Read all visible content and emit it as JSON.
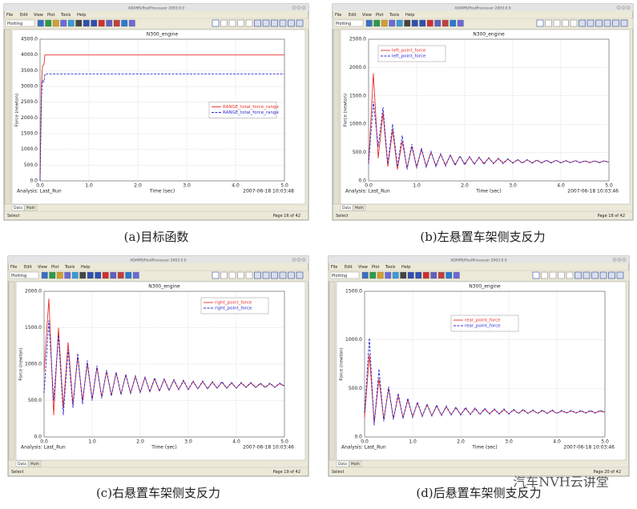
{
  "window": {
    "title": "ADAMS/PostProcessor 2003.0.0",
    "menu": [
      "File",
      "Edit",
      "View",
      "Plot",
      "Tools",
      "Help"
    ],
    "mode": "Plotting",
    "tabs": [
      "Data",
      "Math"
    ],
    "status": "Select"
  },
  "watermark": "汽车NVH云讲堂",
  "chart_data": [
    {
      "type": "line",
      "title": "N300_engine",
      "x_label": "Time (sec)",
      "y_label": "Force (newton)",
      "analysis": "Analysis:  Last_Run",
      "timestamp": "2007-06-18 10:03:48",
      "page": "Page   16 of   42",
      "caption": "(a)目标函数",
      "legend": "right",
      "grid": true,
      "xlim": [
        0,
        5
      ],
      "xticks": [
        {
          "value": 0,
          "label": "0.0"
        },
        {
          "value": 1,
          "label": "1.0"
        },
        {
          "value": 2,
          "label": "2.0"
        },
        {
          "value": 3,
          "label": "3.0"
        },
        {
          "value": 4,
          "label": "4.0"
        },
        {
          "value": 5,
          "label": "5.0"
        }
      ],
      "ylim": [
        0,
        4500
      ],
      "yticks": [
        {
          "value": 0,
          "label": "0.0"
        },
        {
          "value": 500,
          "label": "500.0"
        },
        {
          "value": 1000,
          "label": "1000.0"
        },
        {
          "value": 1500,
          "label": "1500.0"
        },
        {
          "value": 2000,
          "label": "2000.0"
        },
        {
          "value": 2500,
          "label": "2500.0"
        },
        {
          "value": 3000,
          "label": "3000.0"
        },
        {
          "value": 3500,
          "label": "3500.0"
        },
        {
          "value": 4000,
          "label": "4000.0"
        },
        {
          "value": 4500,
          "label": "4500.0"
        }
      ],
      "x": [
        0,
        0.01,
        0.03,
        0.05,
        0.08,
        0.1,
        5
      ],
      "series": [
        {
          "name": "RANGE_total_force_range",
          "color": "#e8302a",
          "values": [
            0,
            1200,
            3100,
            3650,
            3700,
            4000,
            4000
          ]
        },
        {
          "name": "RANGE_total_force_range",
          "color": "#2a2ad0",
          "dashed": true,
          "values": [
            0,
            1000,
            2700,
            3200,
            3150,
            3400,
            3400
          ]
        }
      ]
    },
    {
      "type": "line",
      "title": "N300_engine",
      "x_label": "Time (sec)",
      "y_label": "Force (newton)",
      "analysis": "Analysis:  Last_Run",
      "timestamp": "2007-06-18 10:03:46",
      "page": "Page   18 of   42",
      "caption": "(b)左悬置车架侧支反力",
      "legend": "upper left",
      "grid": true,
      "xlim": [
        0,
        5
      ],
      "xticks": [
        {
          "value": 0,
          "label": "0.0"
        },
        {
          "value": 1,
          "label": "1.0"
        },
        {
          "value": 2,
          "label": "2.0"
        },
        {
          "value": 3,
          "label": "3.0"
        },
        {
          "value": 4,
          "label": "4.0"
        },
        {
          "value": 5,
          "label": "5.0"
        }
      ],
      "ylim": [
        0,
        2500
      ],
      "yticks": [
        {
          "value": 0,
          "label": "0.0"
        },
        {
          "value": 500,
          "label": "500.0"
        },
        {
          "value": 1000,
          "label": "1000.0"
        },
        {
          "value": 1500,
          "label": "1500.0"
        },
        {
          "value": 2000,
          "label": "2000.0"
        },
        {
          "value": 2500,
          "label": "2500.0"
        }
      ],
      "x": [
        0,
        0.1,
        0.2,
        0.3,
        0.4,
        0.5,
        0.6,
        0.7,
        0.8,
        0.9,
        1,
        1.1,
        1.2,
        1.3,
        1.4,
        1.5,
        1.6,
        1.7,
        1.8,
        1.9,
        2,
        2.1,
        2.2,
        2.3,
        2.4,
        2.5,
        2.6,
        2.7,
        2.8,
        2.9,
        3,
        3.1,
        3.2,
        3.3,
        3.4,
        3.5,
        3.6,
        3.7,
        3.8,
        3.9,
        4,
        4.1,
        4.2,
        4.3,
        4.4,
        4.5,
        4.6,
        4.7,
        4.8,
        4.9,
        5
      ],
      "series": [
        {
          "name": "left_point_force",
          "color": "#e8302a",
          "values": [
            300,
            1900,
            400,
            1200,
            250,
            900,
            200,
            700,
            230,
            600,
            250,
            550,
            260,
            500,
            270,
            470,
            280,
            450,
            290,
            430,
            300,
            420,
            300,
            410,
            310,
            400,
            310,
            390,
            320,
            380,
            320,
            370,
            320,
            370,
            320,
            360,
            320,
            360,
            320,
            360,
            320,
            355,
            325,
            355,
            325,
            350,
            325,
            350,
            325,
            350,
            330
          ]
        },
        {
          "name": "left_point_force",
          "color": "#2a2ad0",
          "dashed": true,
          "values": [
            300,
            1400,
            600,
            1300,
            300,
            1000,
            250,
            800,
            200,
            650,
            220,
            580,
            240,
            520,
            250,
            480,
            260,
            460,
            270,
            440,
            280,
            430,
            290,
            420,
            290,
            410,
            300,
            400,
            300,
            390,
            310,
            380,
            310,
            375,
            310,
            370,
            315,
            365,
            315,
            365,
            315,
            360,
            320,
            360,
            320,
            355,
            320,
            355,
            320,
            355,
            330
          ]
        }
      ]
    },
    {
      "type": "line",
      "title": "N300_engine",
      "x_label": "Time (sec)",
      "y_label": "Force (newton)",
      "analysis": "Analysis:  Last_Run",
      "timestamp": "2007-06-18 10:03:46",
      "page": "Page   19 of   42",
      "caption": "(c)右悬置车架侧支反力",
      "legend": "upper right",
      "grid": true,
      "xlim": [
        0,
        5
      ],
      "xticks": [
        {
          "value": 0,
          "label": "0.0"
        },
        {
          "value": 1,
          "label": "1.0"
        },
        {
          "value": 2,
          "label": "2.0"
        },
        {
          "value": 3,
          "label": "3.0"
        },
        {
          "value": 4,
          "label": "4.0"
        },
        {
          "value": 5,
          "label": "5.0"
        }
      ],
      "ylim": [
        0,
        2000
      ],
      "yticks": [
        {
          "value": 0,
          "label": "0.0"
        },
        {
          "value": 500,
          "label": "500.0"
        },
        {
          "value": 1000,
          "label": "1000.0"
        },
        {
          "value": 1500,
          "label": "1500.0"
        },
        {
          "value": 2000,
          "label": "2000.0"
        }
      ],
      "x": [
        0,
        0.1,
        0.2,
        0.3,
        0.4,
        0.5,
        0.6,
        0.7,
        0.8,
        0.9,
        1,
        1.1,
        1.2,
        1.3,
        1.4,
        1.5,
        1.6,
        1.7,
        1.8,
        1.9,
        2,
        2.1,
        2.2,
        2.3,
        2.4,
        2.5,
        2.6,
        2.7,
        2.8,
        2.9,
        3,
        3.1,
        3.2,
        3.3,
        3.4,
        3.5,
        3.6,
        3.7,
        3.8,
        3.9,
        4,
        4.1,
        4.2,
        4.3,
        4.4,
        4.5,
        4.6,
        4.7,
        4.8,
        4.9,
        5
      ],
      "series": [
        {
          "name": "right_point_force",
          "color": "#e8302a",
          "values": [
            900,
            1900,
            300,
            1500,
            400,
            1300,
            450,
            1100,
            500,
            1000,
            520,
            950,
            550,
            900,
            570,
            880,
            590,
            850,
            600,
            830,
            610,
            820,
            620,
            800,
            630,
            790,
            640,
            780,
            650,
            770,
            650,
            760,
            660,
            760,
            660,
            750,
            670,
            750,
            670,
            740,
            670,
            740,
            680,
            740,
            680,
            730,
            680,
            730,
            680,
            730,
            700
          ]
        },
        {
          "name": "right_point_force",
          "color": "#2a2ad0",
          "dashed": true,
          "values": [
            600,
            1600,
            500,
            1400,
            300,
            1200,
            400,
            1150,
            450,
            1050,
            500,
            980,
            530,
            920,
            560,
            890,
            580,
            860,
            600,
            840,
            610,
            820,
            620,
            810,
            630,
            800,
            640,
            790,
            650,
            780,
            650,
            770,
            660,
            770,
            660,
            760,
            670,
            760,
            670,
            750,
            670,
            750,
            680,
            750,
            680,
            740,
            680,
            740,
            680,
            740,
            700
          ]
        }
      ]
    },
    {
      "type": "line",
      "title": "N300_engine",
      "x_label": "Time (sec)",
      "y_label": "Force (newton)",
      "analysis": "Analysis:  Last_Run",
      "timestamp": "2007-06-18 10:03:46",
      "page": "Page   20 of   42",
      "caption": "(d)后悬置车架侧支反力",
      "legend": "upper center",
      "grid": true,
      "xlim": [
        0,
        5
      ],
      "xticks": [
        {
          "value": 0,
          "label": "0.0"
        },
        {
          "value": 1,
          "label": "1.0"
        },
        {
          "value": 2,
          "label": "2.0"
        },
        {
          "value": 3,
          "label": "3.0"
        },
        {
          "value": 4,
          "label": "4.0"
        },
        {
          "value": 5,
          "label": "5.0"
        }
      ],
      "ylim": [
        0,
        1500
      ],
      "yticks": [
        {
          "value": 0,
          "label": "0.0"
        },
        {
          "value": 500,
          "label": "500.0"
        },
        {
          "value": 1000,
          "label": "1000.0"
        },
        {
          "value": 1500,
          "label": "1500.0"
        }
      ],
      "x": [
        0,
        0.1,
        0.2,
        0.3,
        0.4,
        0.5,
        0.6,
        0.7,
        0.8,
        0.9,
        1,
        1.1,
        1.2,
        1.3,
        1.4,
        1.5,
        1.6,
        1.7,
        1.8,
        1.9,
        2,
        2.1,
        2.2,
        2.3,
        2.4,
        2.5,
        2.6,
        2.7,
        2.8,
        2.9,
        3,
        3.1,
        3.2,
        3.3,
        3.4,
        3.5,
        3.6,
        3.7,
        3.8,
        3.9,
        4,
        4.1,
        4.2,
        4.3,
        4.4,
        4.5,
        4.6,
        4.7,
        4.8,
        4.9,
        5
      ],
      "series": [
        {
          "name": "rear_point_force",
          "color": "#e8302a",
          "values": [
            200,
            850,
            150,
            600,
            180,
            500,
            190,
            420,
            200,
            380,
            210,
            350,
            215,
            330,
            220,
            320,
            225,
            310,
            230,
            300,
            230,
            295,
            235,
            290,
            235,
            285,
            240,
            280,
            240,
            280,
            240,
            275,
            245,
            275,
            245,
            270,
            245,
            270,
            245,
            270,
            245,
            265,
            250,
            265,
            250,
            265,
            250,
            265,
            250,
            265,
            255
          ]
        },
        {
          "name": "rear_point_force",
          "color": "#2a2ad0",
          "dashed": true,
          "values": [
            250,
            1020,
            120,
            700,
            160,
            520,
            180,
            450,
            190,
            400,
            200,
            360,
            210,
            340,
            215,
            330,
            220,
            320,
            225,
            310,
            225,
            305,
            230,
            300,
            230,
            295,
            235,
            290,
            235,
            290,
            235,
            285,
            240,
            285,
            240,
            280,
            240,
            280,
            240,
            280,
            240,
            275,
            245,
            275,
            245,
            275,
            245,
            275,
            245,
            275,
            255
          ]
        }
      ]
    }
  ]
}
